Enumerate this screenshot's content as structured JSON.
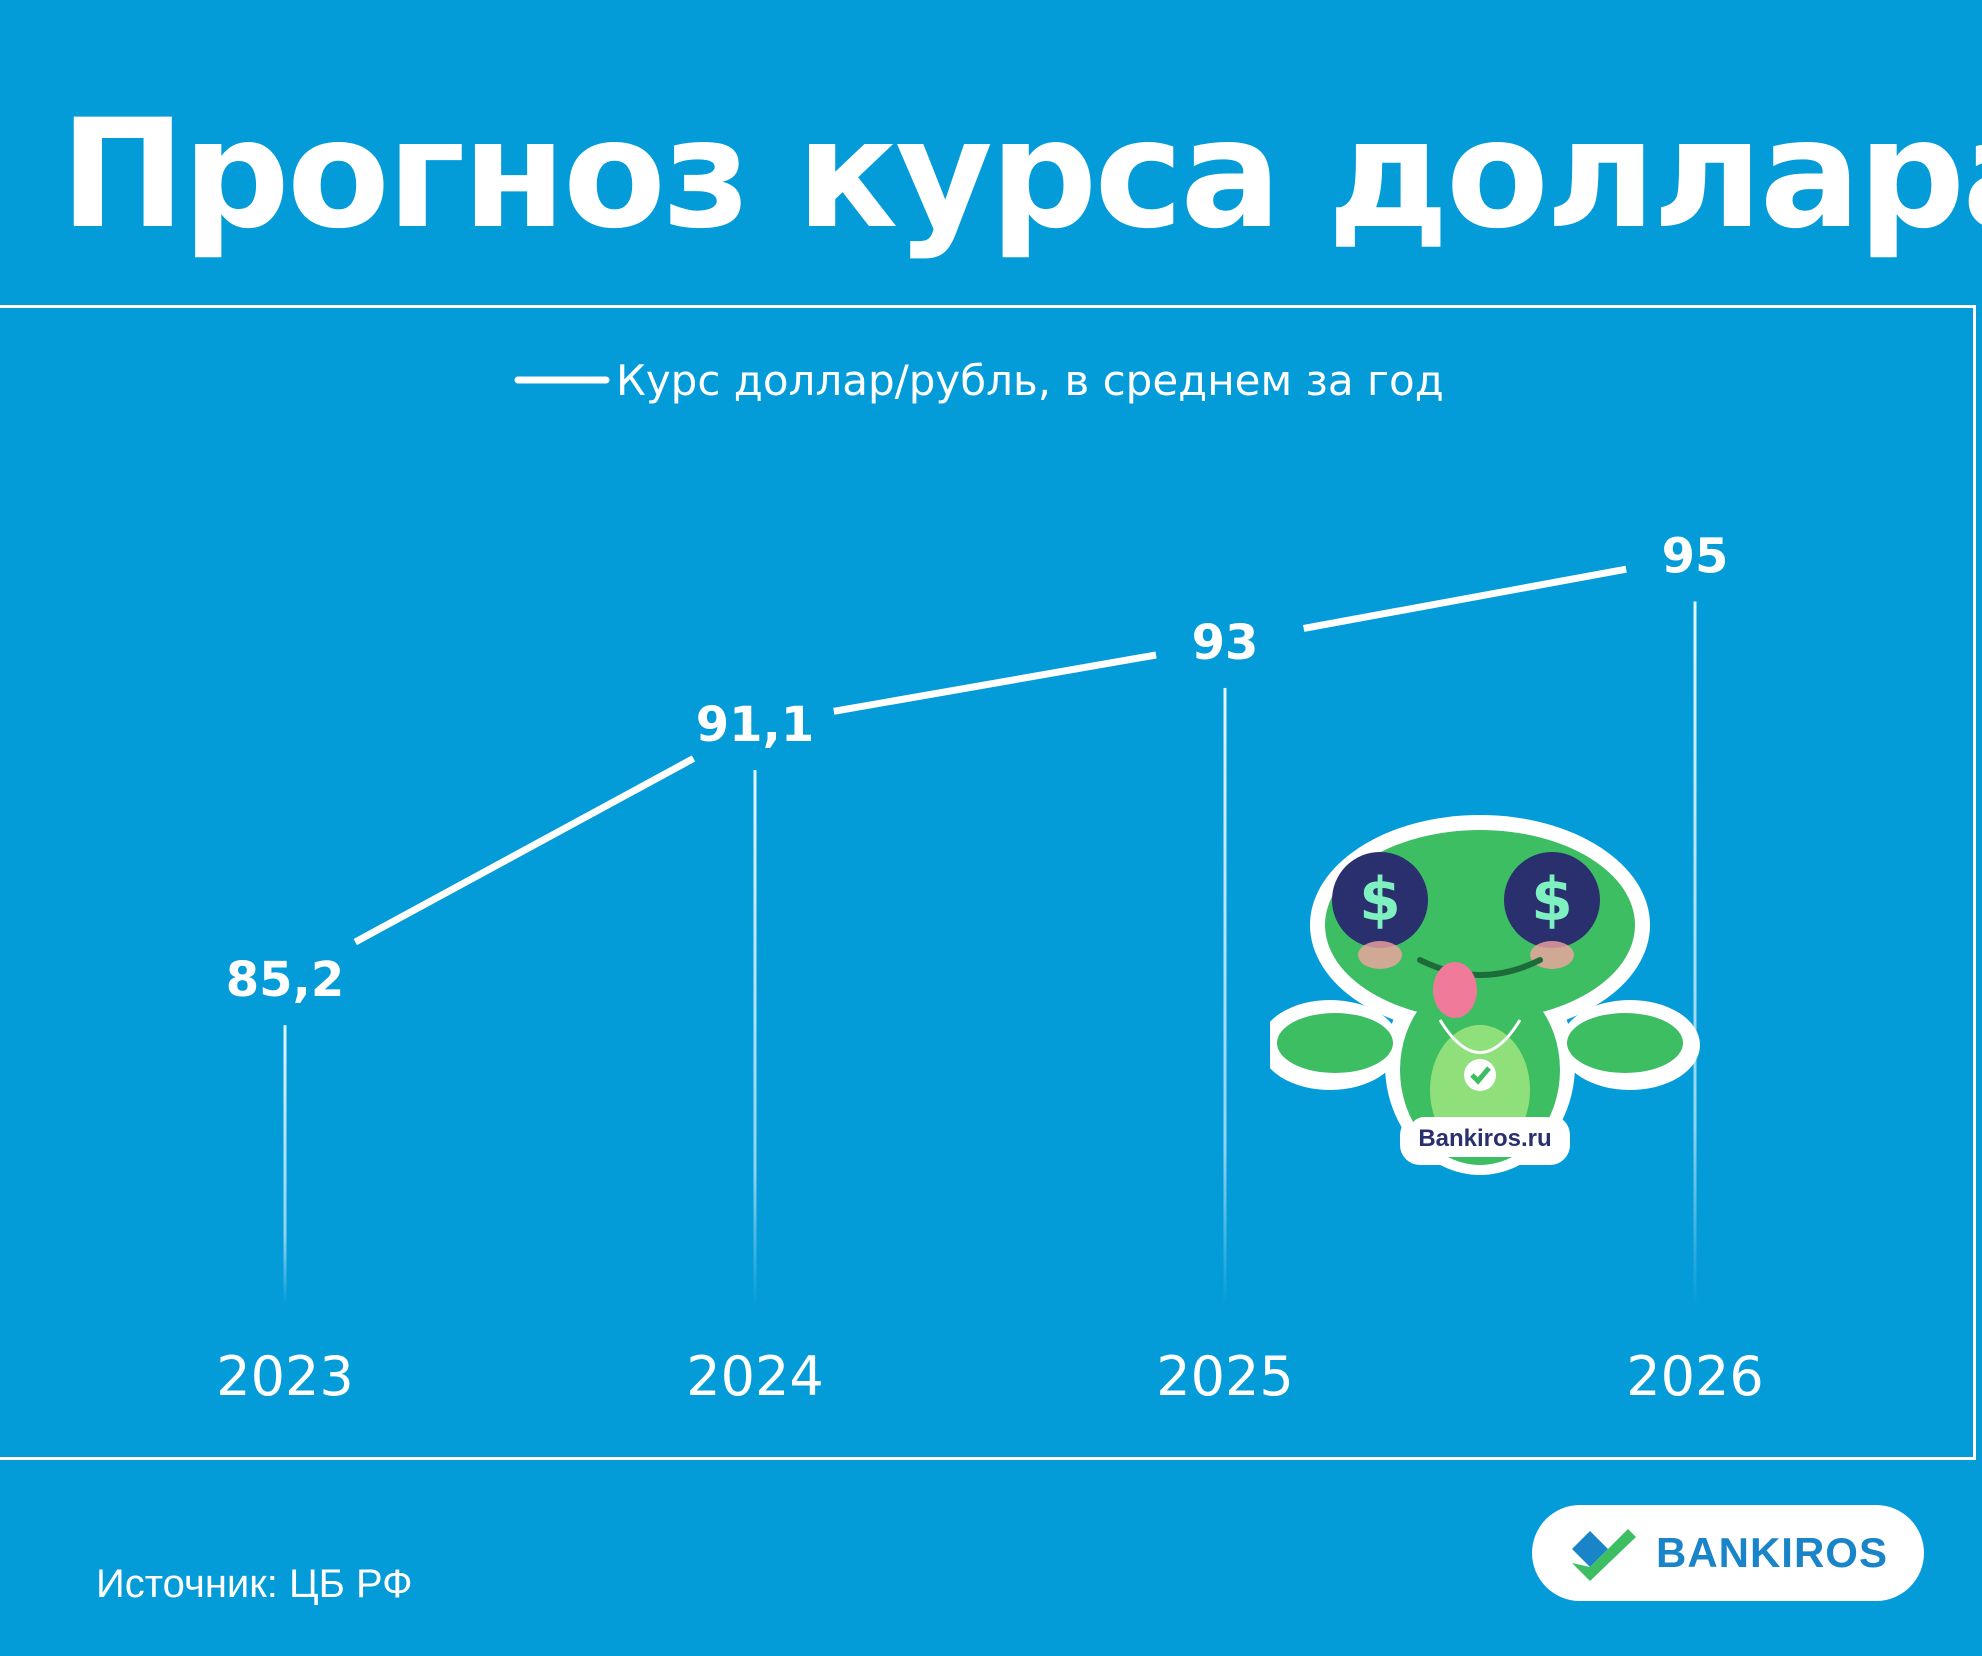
{
  "title": "Прогноз курса доллара",
  "source": "Источник: ЦБ РФ",
  "brand": {
    "name": "BANKIROS",
    "sticker_text": "Bankiros.ru"
  },
  "colors": {
    "background": "#039CD9",
    "line": "#ffffff",
    "brand": "#1A84C9",
    "mascot": "#3DBE63"
  },
  "chart_data": {
    "type": "line",
    "categories": [
      "2023",
      "2024",
      "2025",
      "2026"
    ],
    "series": [
      {
        "name": "Курс доллар/рубль, в среднем за год",
        "values": [
          85.2,
          91.1,
          93,
          95
        ],
        "labels": [
          "85,2",
          "91,1",
          "93",
          "95"
        ]
      }
    ],
    "legend": "top-center",
    "grid": false,
    "ylim": [
      80,
      97
    ]
  }
}
